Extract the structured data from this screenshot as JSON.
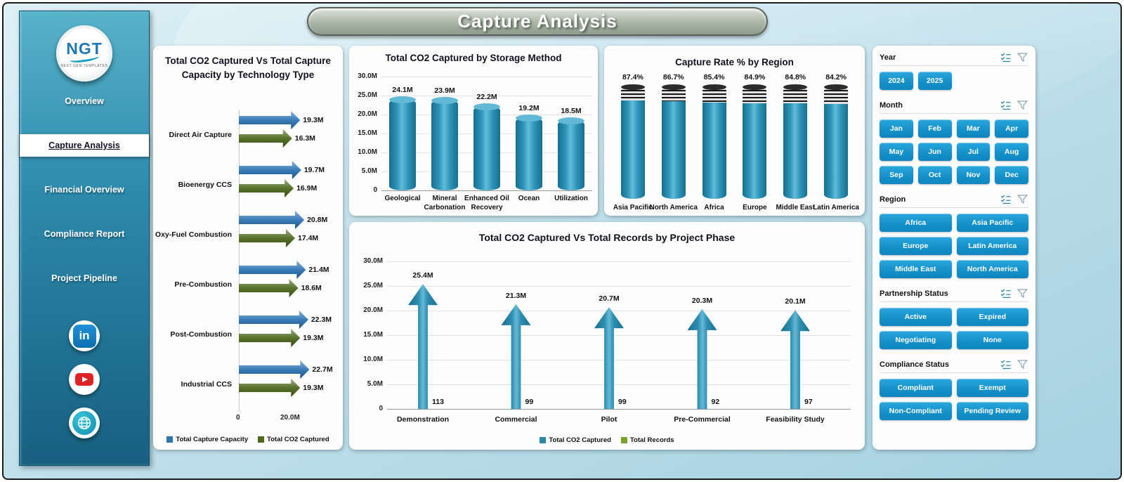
{
  "header": {
    "title": "Capture Analysis"
  },
  "sidebar": {
    "logo": {
      "text": "NGT",
      "subtext": "NEXT GEN TEMPLATES"
    },
    "active_index": 1,
    "nav": [
      {
        "label": "Overview"
      },
      {
        "label": "Capture Analysis"
      },
      {
        "label": "Financial Overview"
      },
      {
        "label": "Compliance Report"
      },
      {
        "label": "Project Pipeline"
      }
    ],
    "social": [
      {
        "name": "linkedin"
      },
      {
        "name": "youtube"
      },
      {
        "name": "website"
      }
    ]
  },
  "chart_data": [
    {
      "type": "bar",
      "orientation": "horizontal",
      "title": "Total CO2 Captured Vs Total Capture Capacity by Technology Type",
      "categories": [
        "Direct Air Capture",
        "Bioenergy CCS",
        "Oxy-Fuel Combustion",
        "Pre-Combustion",
        "Post-Combustion",
        "Industrial CCS"
      ],
      "series": [
        {
          "name": "Total Capture Capacity",
          "color": "#2e75b6",
          "values": [
            19.3,
            19.7,
            20.8,
            21.4,
            22.3,
            22.7
          ],
          "labels": [
            "19.3M",
            "19.7M",
            "20.8M",
            "21.4M",
            "22.3M",
            "22.7M"
          ]
        },
        {
          "name": "Total CO2 Captured",
          "color": "#4f6a1f",
          "values": [
            16.3,
            16.9,
            17.4,
            18.6,
            19.3,
            19.3
          ],
          "labels": [
            "16.3M",
            "16.9M",
            "17.4M",
            "18.6M",
            "19.3M",
            "19.3M"
          ]
        }
      ],
      "x_ticks": [
        "0",
        "20.0M"
      ],
      "xlim": [
        0,
        20
      ],
      "legend_position": "bottom"
    },
    {
      "type": "bar",
      "title": "Total CO2 Captured by Storage Method",
      "categories": [
        "Geological",
        "Mineral Carbonation",
        "Enhanced Oil Recovery",
        "Ocean",
        "Utilization"
      ],
      "values": [
        24.1,
        23.9,
        22.2,
        19.2,
        18.5
      ],
      "value_labels": [
        "24.1M",
        "23.9M",
        "22.2M",
        "19.2M",
        "18.5M"
      ],
      "ylim": [
        0,
        30
      ],
      "y_tick_labels": [
        "30.0M",
        "25.0M",
        "20.0M",
        "15.0M",
        "10.0M",
        "5.0M",
        "0"
      ],
      "y_tick_values": [
        30,
        25,
        20,
        15,
        10,
        5,
        0
      ],
      "bar_color": "#2d93b8",
      "grid": true
    },
    {
      "type": "bar",
      "title": "Capture Rate % by Region",
      "categories": [
        "Asia Pacific",
        "North America",
        "Africa",
        "Europe",
        "Middle East",
        "Latin America"
      ],
      "values": [
        87.4,
        86.7,
        85.4,
        84.9,
        84.8,
        84.2
      ],
      "value_labels": [
        "87.4%",
        "86.7%",
        "85.4%",
        "84.9%",
        "84.8%",
        "84.2%"
      ],
      "ylim": [
        0,
        100
      ],
      "bar_color": "#2d93b8"
    },
    {
      "type": "bar",
      "title": "Total CO2 Captured Vs Total Records by Project Phase",
      "categories": [
        "Demonstration",
        "Commercial",
        "Pilot",
        "Pre-Commercial",
        "Feasibility Study"
      ],
      "series": [
        {
          "name": "Total CO2 Captured",
          "color": "#2e86a8",
          "values": [
            25.4,
            21.3,
            20.7,
            20.3,
            20.1
          ],
          "labels": [
            "25.4M",
            "21.3M",
            "20.7M",
            "20.3M",
            "20.1M"
          ]
        },
        {
          "name": "Total Records",
          "color": "#7ca32e",
          "values": [
            113,
            99,
            99,
            92,
            97
          ],
          "labels": [
            "113",
            "99",
            "99",
            "92",
            "97"
          ]
        }
      ],
      "ylim": [
        0,
        30
      ],
      "y_tick_labels": [
        "30.0M",
        "25.0M",
        "20.0M",
        "15.0M",
        "10.0M",
        "5.0M",
        "0"
      ],
      "y_tick_values": [
        30,
        25,
        20,
        15,
        10,
        5,
        0
      ],
      "grid": true,
      "legend_position": "bottom"
    }
  ],
  "filters": {
    "button_color": "#1b95cd",
    "sections": [
      {
        "label": "Year",
        "cols": 4,
        "options": [
          "2024",
          "2025"
        ]
      },
      {
        "label": "Month",
        "cols": 4,
        "options": [
          "Jan",
          "Feb",
          "Mar",
          "Apr",
          "May",
          "Jun",
          "Jul",
          "Aug",
          "Sep",
          "Oct",
          "Nov",
          "Dec"
        ]
      },
      {
        "label": "Region",
        "cols": 2,
        "options": [
          "Africa",
          "Asia Pacific",
          "Europe",
          "Latin America",
          "Middle East",
          "North America"
        ]
      },
      {
        "label": "Partnership Status",
        "cols": 2,
        "options": [
          "Active",
          "Expired",
          "Negotiating",
          "None"
        ]
      },
      {
        "label": "Compliance Status",
        "cols": 2,
        "options": [
          "Compliant",
          "Exempt",
          "Non-Compliant",
          "Pending Review"
        ]
      }
    ]
  }
}
